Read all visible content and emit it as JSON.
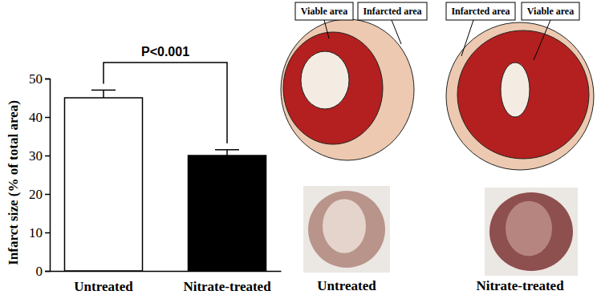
{
  "chart_data": {
    "type": "bar",
    "categories": [
      "Untreated",
      "Nitrate-treated"
    ],
    "values": [
      45,
      30
    ],
    "errors": [
      2,
      1.5
    ],
    "colors": [
      "#ffffff",
      "#000000"
    ],
    "ylabel": "Infarct size (% of total area)",
    "ylim": [
      0,
      50
    ],
    "yticks": [
      0,
      10,
      20,
      30,
      40,
      50
    ],
    "annotation": "P<0.001"
  },
  "panels": [
    {
      "caption": "Untreated",
      "labels": [
        "Viable area",
        "Infarcted area"
      ]
    },
    {
      "caption": "Nitrate-treated",
      "labels": [
        "Infarcted area",
        "Viable area"
      ]
    }
  ]
}
